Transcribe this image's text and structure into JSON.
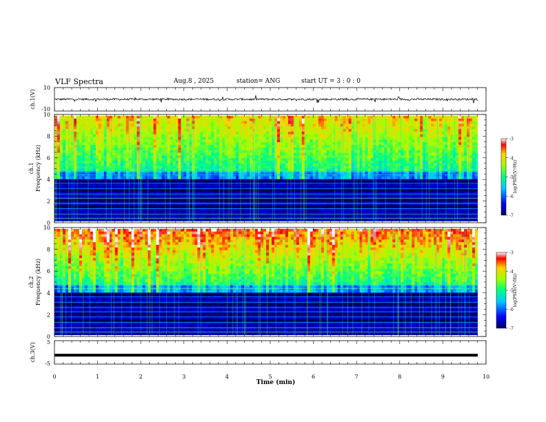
{
  "header": {
    "title": "VLF Spectra",
    "date": "Aug.8 , 2025",
    "station": "station= ANG",
    "start": "start  UT =  3 : 0 : 0"
  },
  "chart_data": [
    {
      "type": "line",
      "panel": "ch1-waveform",
      "ylabel": "ch.1(V)",
      "ylim": [
        -10,
        10
      ],
      "yticks": [
        "10",
        "-10"
      ],
      "xlim": [
        0,
        10
      ],
      "series": [
        {
          "values_note_free": true,
          "baseline": 0
        }
      ]
    },
    {
      "type": "heatmap",
      "panel": "ch1-spectrogram",
      "ylabel": "ch.1\nFrequency (kHz)",
      "ylabel_line1": "ch.1",
      "ylabel_line2": "Frequency (kHz)",
      "ylim": [
        0,
        10
      ],
      "yticks": [
        "0",
        "2",
        "4",
        "6",
        "8",
        "10"
      ],
      "xlim": [
        0,
        10
      ],
      "colorbar": {
        "label": "log(PSD)(V²/Hz)",
        "range": [
          -7,
          -3
        ],
        "ticks": [
          "-3",
          "-4",
          "-5",
          "-6",
          "-7"
        ]
      }
    },
    {
      "type": "heatmap",
      "panel": "ch2-spectrogram",
      "ylabel_line1": "ch.2",
      "ylabel_line2": "Frequency (kHz)",
      "ylim": [
        0,
        10
      ],
      "yticks": [
        "0",
        "2",
        "4",
        "6",
        "8",
        "10"
      ],
      "xlim": [
        0,
        10
      ],
      "colorbar": {
        "label": "log(PSD)(V²/Hz)",
        "range": [
          -7,
          -3
        ],
        "ticks": [
          "-3",
          "-4",
          "-5",
          "-6",
          "-7"
        ]
      }
    },
    {
      "type": "line",
      "panel": "ch3-waveform",
      "ylabel": "ch.3(V)",
      "ylim": [
        -5,
        5
      ],
      "yticks": [
        "5",
        "-5"
      ],
      "xlim": [
        0,
        10
      ],
      "series": [
        {
          "baseline": -1.2
        }
      ]
    }
  ],
  "xaxis": {
    "label": "Time (min)",
    "ticks": [
      "0",
      "1",
      "2",
      "3",
      "4",
      "5",
      "6",
      "7",
      "8",
      "9",
      "10"
    ],
    "range": [
      0,
      10
    ]
  },
  "colors": {
    "spectro_low": "#00007a",
    "spectro_high": "#ff0000"
  }
}
